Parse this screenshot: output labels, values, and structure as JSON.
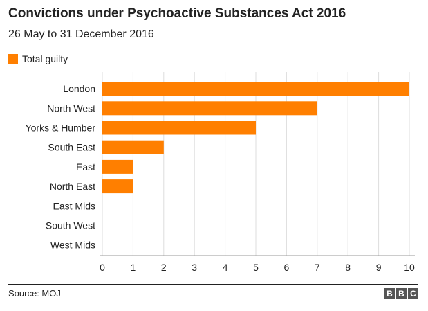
{
  "header": {
    "title": "Convictions under Psychoactive Substances Act 2016",
    "subtitle": "26 May to 31 December 2016"
  },
  "legend": {
    "label": "Total guilty",
    "color": "#FF7F00"
  },
  "chart_data": {
    "type": "bar",
    "orientation": "horizontal",
    "title": "Convictions under Psychoactive Substances Act 2016",
    "subtitle": "26 May to 31 December 2016",
    "categories": [
      "London",
      "North West",
      "Yorks & Humber",
      "South East",
      "East",
      "North East",
      "East Mids",
      "South West",
      "West Mids"
    ],
    "series": [
      {
        "name": "Total guilty",
        "values": [
          10,
          7,
          5,
          2,
          1,
          1,
          0,
          0,
          0
        ],
        "color": "#FF7F00"
      }
    ],
    "xticks": [
      0,
      1,
      2,
      3,
      4,
      5,
      6,
      7,
      8,
      9,
      10
    ],
    "xlim": [
      0,
      10
    ],
    "grid": true,
    "legend_position": "top-left"
  },
  "footer": {
    "source": "Source: MOJ",
    "logo": [
      "B",
      "B",
      "C"
    ]
  }
}
